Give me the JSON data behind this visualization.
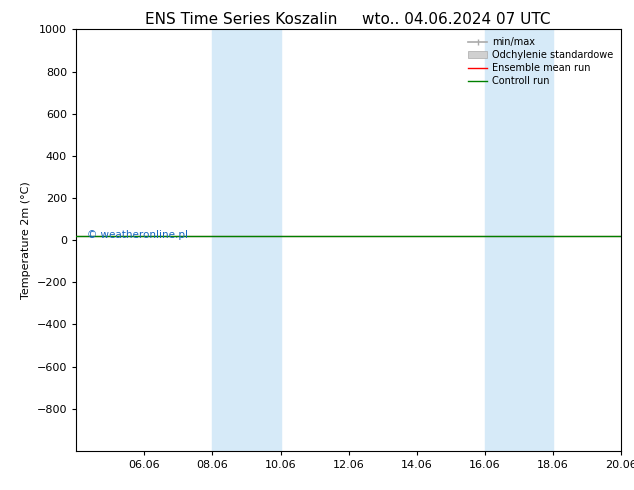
{
  "title": "ENS Time Series Koszalin",
  "title2": "wto.. 04.06.2024 07 UTC",
  "ylabel": "Temperature 2m (°C)",
  "ylim_top": -1000,
  "ylim_bottom": 1000,
  "yticks": [
    -800,
    -600,
    -400,
    -200,
    0,
    200,
    400,
    600,
    800,
    1000
  ],
  "xtick_labels": [
    "06.06",
    "08.06",
    "10.06",
    "12.06",
    "14.06",
    "16.06",
    "18.06",
    "20.06"
  ],
  "xtick_positions": [
    2,
    4,
    6,
    8,
    10,
    12,
    14,
    16
  ],
  "shaded_regions": [
    {
      "x_start": 4,
      "x_end": 6
    },
    {
      "x_start": 12,
      "x_end": 14
    }
  ],
  "shaded_color": "#d6eaf8",
  "line_y_value": 20,
  "watermark": "© weatheronline.pl",
  "watermark_color": "#1565c0",
  "background_color": "#ffffff",
  "font_color": "#000000",
  "font_size_title": 11,
  "font_size_axis": 8,
  "xlim": [
    0,
    16
  ]
}
